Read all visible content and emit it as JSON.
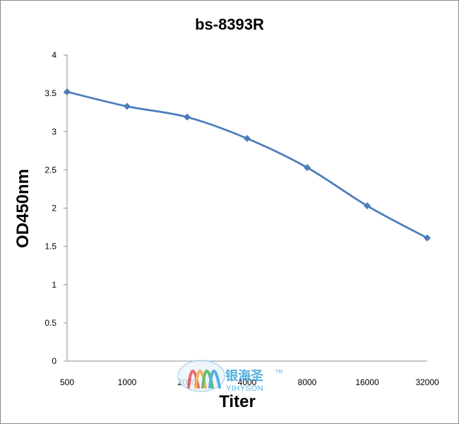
{
  "chart_data": {
    "type": "line",
    "title": "bs-8393R",
    "xlabel": "Titer",
    "ylabel": "OD450nm",
    "categories": [
      "500",
      "1000",
      "2000",
      "4000",
      "8000",
      "16000",
      "32000"
    ],
    "series": [
      {
        "values": [
          3.52,
          3.33,
          3.19,
          2.91,
          2.53,
          2.03,
          1.61
        ],
        "color": "#4a7ebb"
      }
    ],
    "ylim": [
      0,
      4
    ],
    "yticks": [
      "0",
      "0.5",
      "1",
      "1.5",
      "2",
      "2.5",
      "3",
      "3.5",
      "4"
    ],
    "grid": false,
    "legend": "none"
  },
  "watermark": {
    "text_cn": "银海圣",
    "text_en": "YIHYSON",
    "tm": "TM",
    "colors": [
      "#e8474c",
      "#f3a23a",
      "#3bb04a",
      "#2a9fd8"
    ]
  }
}
